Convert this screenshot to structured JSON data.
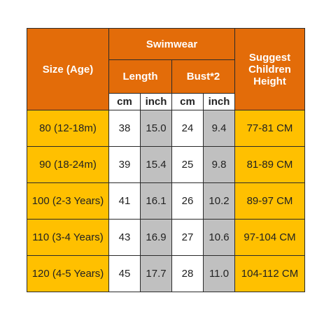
{
  "header": {
    "size_age": "Size (Age)",
    "swimwear": "Swimwear",
    "length": "Length",
    "bust": "Bust*2",
    "suggest": "Suggest Children Height",
    "units": [
      "cm",
      "inch",
      "cm",
      "inch"
    ]
  },
  "table": {
    "rows": [
      [
        "80 (12-18m)",
        "38",
        "15.0",
        "24",
        "9.4",
        "77-81 CM"
      ],
      [
        "90 (18-24m)",
        "39",
        "15.4",
        "25",
        "9.8",
        "81-89 CM"
      ],
      [
        "100 (2-3 Years)",
        "41",
        "16.1",
        "26",
        "10.2",
        "89-97 CM"
      ],
      [
        "110 (3-4 Years)",
        "43",
        "16.9",
        "27",
        "10.6",
        "97-104 CM"
      ],
      [
        "120 (4-5 Years)",
        "45",
        "17.7",
        "28",
        "11.0",
        "104-112 CM"
      ]
    ]
  }
}
